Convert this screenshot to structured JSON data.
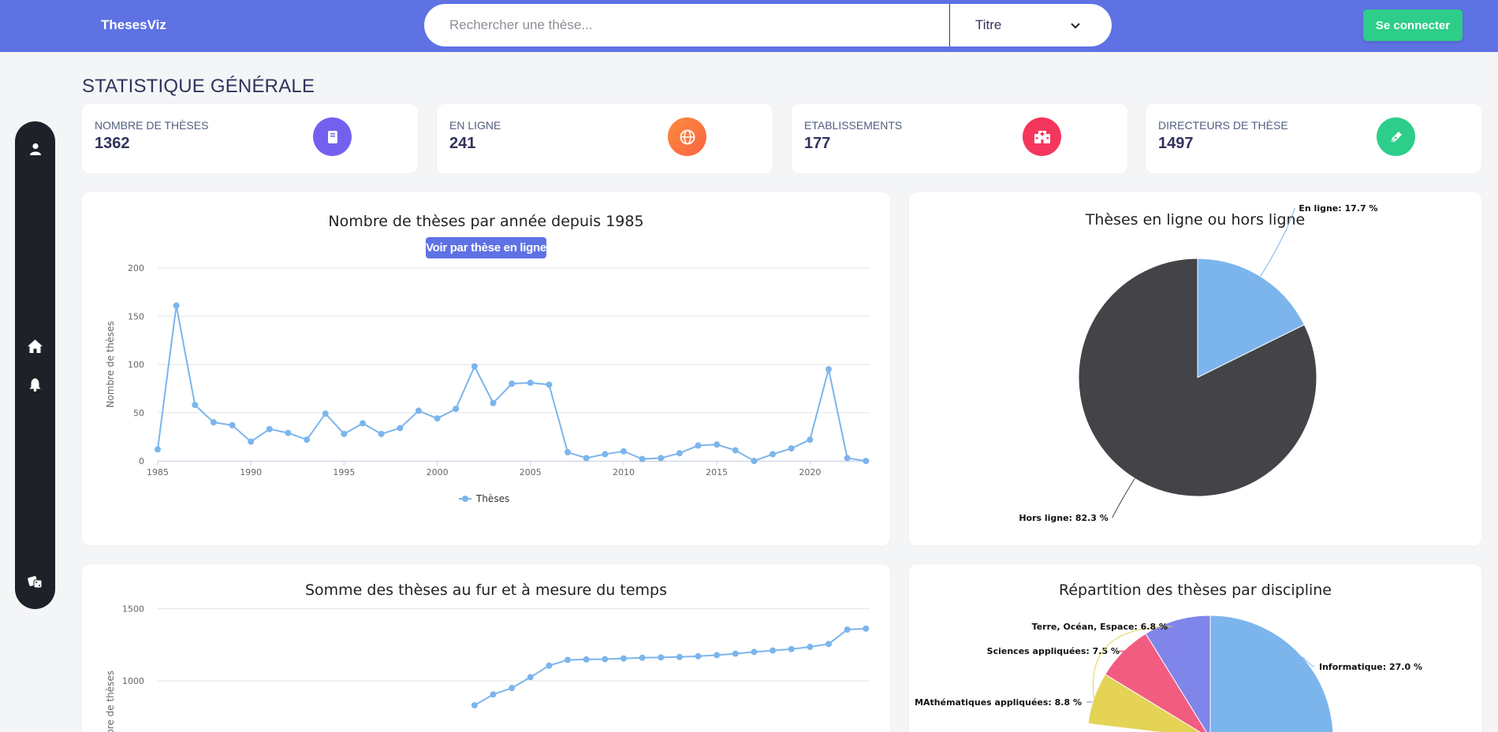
{
  "brand": "ThesesViz",
  "search": {
    "placeholder": "Rechercher une thèse...",
    "filter_value": "Titre"
  },
  "login_label": "Se connecter",
  "page_title": "STATISTIQUE GÉNÉRALE",
  "stats": [
    {
      "label": "Nombre de thèses",
      "value": "1362",
      "icon": "book-icon",
      "color": "#7460ee"
    },
    {
      "label": "En ligne",
      "value": "241",
      "icon": "globe-icon",
      "color": "#fb6340"
    },
    {
      "label": "Etablissements",
      "value": "177",
      "icon": "hospital-icon",
      "color": "#f5365c"
    },
    {
      "label": "Directeurs de thèse",
      "value": "1497",
      "icon": "pen-icon",
      "color": "#2dce89"
    }
  ],
  "charts": {
    "per_year_title": "Nombre de thèses par année depuis 1985",
    "online_button": "Voir par thèse en ligne",
    "online_pie_title": "Thèses en ligne ou hors ligne",
    "cumulative_title": "Somme des thèses au fur et à mesure du temps",
    "discipline_title": "Répartition des thèses par discipline"
  },
  "chart_data": [
    {
      "type": "line",
      "title": "Nombre de thèses par année depuis 1985",
      "ylabel": "Nombre de thèses",
      "xlabel": "",
      "ylim": [
        0,
        200
      ],
      "yticks": [
        "0",
        "50",
        "100",
        "150",
        "200"
      ],
      "xticks": [
        "1985",
        "1990",
        "1995",
        "2000",
        "2005",
        "2010",
        "2015",
        "2020"
      ],
      "grid": true,
      "legend": "bottom",
      "series": [
        {
          "name": "Thèses",
          "color": "#7cb5ec",
          "x": [
            1985,
            1986,
            1987,
            1988,
            1989,
            1990,
            1991,
            1992,
            1993,
            1994,
            1995,
            1996,
            1997,
            1998,
            1999,
            2000,
            2001,
            2002,
            2003,
            2004,
            2005,
            2006,
            2007,
            2008,
            2009,
            2010,
            2011,
            2012,
            2013,
            2014,
            2015,
            2016,
            2017,
            2018,
            2019,
            2020,
            2021,
            2022,
            2023
          ],
          "values": [
            12,
            161,
            58,
            40,
            37,
            20,
            33,
            29,
            22,
            49,
            28,
            39,
            28,
            34,
            52,
            44,
            54,
            98,
            60,
            80,
            81,
            79,
            9,
            3,
            7,
            10,
            2,
            3,
            8,
            16,
            17,
            11,
            0,
            7,
            13,
            22,
            95,
            3,
            0
          ]
        }
      ]
    },
    {
      "type": "pie",
      "title": "Thèses en ligne ou hors ligne",
      "slices": [
        {
          "label": "En ligne",
          "value": 17.7,
          "display": "En ligne: 17.7 %",
          "color": "#7cb5ec"
        },
        {
          "label": "Hors ligne",
          "value": 82.3,
          "display": "Hors ligne: 82.3 %",
          "color": "#434348"
        }
      ]
    },
    {
      "type": "line",
      "title": "Somme des thèses au fur et à mesure du temps",
      "ylabel": "Nombre de thèses",
      "yticks": [
        "1000",
        "1500"
      ],
      "grid": true,
      "series": [
        {
          "name": "",
          "color": "#7cb5ec",
          "x": [
            2002,
            2003,
            2004,
            2005,
            2006,
            2007,
            2008,
            2009,
            2010,
            2011,
            2012,
            2013,
            2014,
            2015,
            2016,
            2017,
            2018,
            2019,
            2020,
            2021,
            2022,
            2023
          ],
          "values": [
            830,
            905,
            950,
            1025,
            1105,
            1145,
            1148,
            1150,
            1155,
            1160,
            1162,
            1165,
            1170,
            1178,
            1188,
            1200,
            1210,
            1220,
            1235,
            1255,
            1355,
            1362
          ]
        }
      ]
    },
    {
      "type": "pie",
      "title": "Répartition des thèses par discipline",
      "slices": [
        {
          "label": "Informatique",
          "value": 27.0,
          "display": "Informatique: 27.0 %",
          "color": "#7cb5ec"
        },
        {
          "label": "MAthématiques appliquées",
          "value": 8.8,
          "display": "MAthématiques appliquées: 8.8 %",
          "color": "#8085e9"
        },
        {
          "label": "Sciences appliquées",
          "value": 7.5,
          "display": "Sciences appliquées: 7.5 %",
          "color": "#f15c80"
        },
        {
          "label": "Terre, Océan, Espace",
          "value": 6.8,
          "display": "Terre, Océan, Espace: 6.8 %",
          "color": "#e4d354"
        }
      ]
    }
  ]
}
